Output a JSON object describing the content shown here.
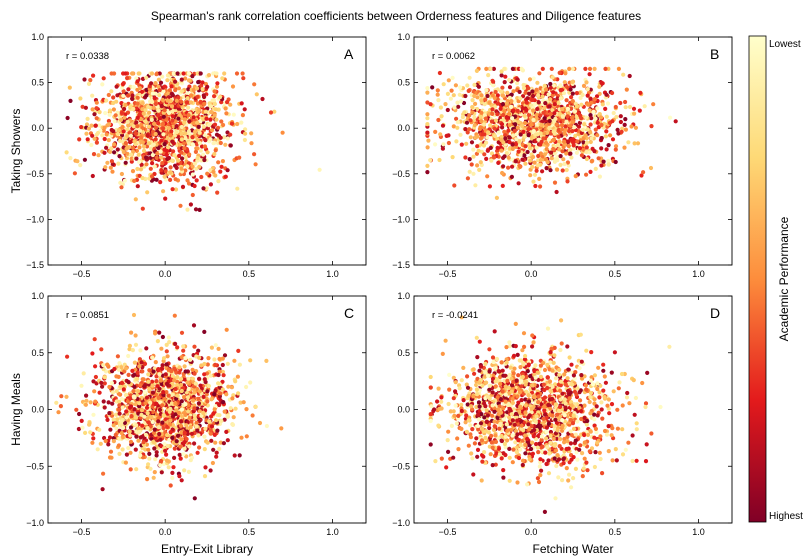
{
  "title": "Spearman's rank correlation coefficients between Orderness features and Diligence features",
  "colorbar": {
    "label": "Academic Performance",
    "top_label": "Lowest",
    "bottom_label": "Highest",
    "colors": [
      "#ffffcc",
      "#fed976",
      "#fd8d3c",
      "#e31a1c",
      "#800026"
    ]
  },
  "chart_data": [
    {
      "type": "scatter",
      "panel": "A",
      "r_text": "r = 0.0338",
      "xlabel": "",
      "ylabel": "Taking Showers",
      "xlim": [
        -0.7,
        1.2
      ],
      "ylim": [
        -1.5,
        1.0
      ],
      "xticks": [
        -0.5,
        0.0,
        0.5,
        1.0
      ],
      "xtick_labels": [
        "−0.5",
        "0.0",
        "0.5",
        "1.0"
      ],
      "yticks": [
        -1.5,
        -1.0,
        -0.5,
        0.0,
        0.5,
        1.0
      ],
      "ytick_labels": [
        "−1.5",
        "−1.0",
        "−0.5",
        "0.0",
        "0.5",
        "1.0"
      ],
      "n_points": 1500,
      "distribution": {
        "x_mean": 0.0,
        "x_sd": 0.2,
        "x_range": [
          -0.65,
          1.15
        ],
        "y_mean": 0.02,
        "y_sd": 0.3,
        "y_range": [
          -1.4,
          0.6
        ],
        "seed": 11
      }
    },
    {
      "type": "scatter",
      "panel": "B",
      "r_text": "r = 0.0062",
      "xlabel": "",
      "ylabel": "",
      "xlim": [
        -0.7,
        1.2
      ],
      "ylim": [
        -1.5,
        1.0
      ],
      "xticks": [
        -0.5,
        0.0,
        0.5,
        1.0
      ],
      "xtick_labels": [
        "−0.5",
        "0.0",
        "0.5",
        "1.0"
      ],
      "yticks": [
        -1.5,
        -1.0,
        -0.5,
        0.0,
        0.5,
        1.0
      ],
      "ytick_labels": [
        "−1.5",
        "−1.0",
        "−0.5",
        "0.0",
        "0.5",
        "1.0"
      ],
      "n_points": 1500,
      "distribution": {
        "x_mean": 0.02,
        "x_sd": 0.25,
        "x_range": [
          -0.62,
          1.2
        ],
        "y_mean": 0.05,
        "y_sd": 0.27,
        "y_range": [
          -1.3,
          0.65
        ],
        "seed": 23
      }
    },
    {
      "type": "scatter",
      "panel": "C",
      "r_text": "r = 0.0851",
      "xlabel": "Entry-Exit Library",
      "ylabel": "Having Meals",
      "xlim": [
        -0.7,
        1.2
      ],
      "ylim": [
        -1.0,
        1.0
      ],
      "xticks": [
        -0.5,
        0.0,
        0.5,
        1.0
      ],
      "xtick_labels": [
        "−0.5",
        "0.0",
        "0.5",
        "1.0"
      ],
      "yticks": [
        -1.0,
        -0.5,
        0.0,
        0.5,
        1.0
      ],
      "ytick_labels": [
        "−1.0",
        "−0.5",
        "0.0",
        "0.5",
        "1.0"
      ],
      "n_points": 1500,
      "distribution": {
        "x_mean": 0.0,
        "x_sd": 0.2,
        "x_range": [
          -0.68,
          0.9
        ],
        "y_mean": 0.02,
        "y_sd": 0.24,
        "y_range": [
          -0.85,
          0.95
        ],
        "seed": 37
      }
    },
    {
      "type": "scatter",
      "panel": "D",
      "r_text": "r = -0.0241",
      "xlabel": "Fetching Water",
      "ylabel": "",
      "xlim": [
        -0.7,
        1.2
      ],
      "ylim": [
        -1.0,
        1.0
      ],
      "xticks": [
        -0.5,
        0.0,
        0.5,
        1.0
      ],
      "xtick_labels": [
        "−0.5",
        "0.0",
        "0.5",
        "1.0"
      ],
      "yticks": [
        -1.0,
        -0.5,
        0.0,
        0.5,
        1.0
      ],
      "ytick_labels": [
        "−1.0",
        "−0.5",
        "0.0",
        "0.5",
        "1.0"
      ],
      "n_points": 1500,
      "distribution": {
        "x_mean": 0.0,
        "x_sd": 0.25,
        "x_range": [
          -0.6,
          1.1
        ],
        "y_mean": 0.0,
        "y_sd": 0.26,
        "y_range": [
          -0.98,
          0.98
        ],
        "seed": 53
      }
    }
  ]
}
